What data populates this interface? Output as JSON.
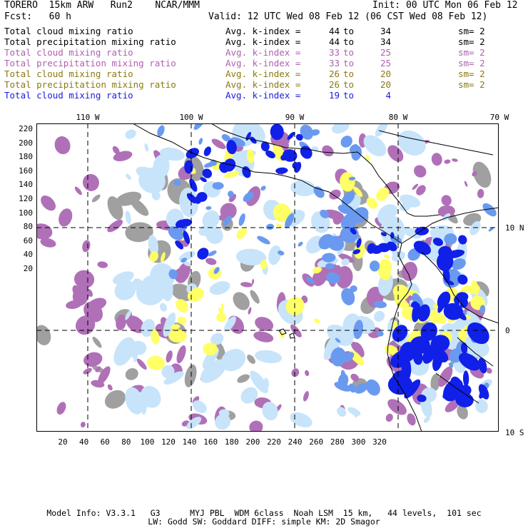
{
  "header": {
    "model": "TORERO  15km ARW   Run2    NCAR/MMM",
    "init": "Init: 00 UTC Mon 06 Feb 12",
    "fcst": "Fcst:   60 h",
    "valid": "Valid: 12 UTC Wed 08 Feb 12 (06 CST Wed 08 Feb 12)"
  },
  "legend": [
    {
      "variable": "Total cloud mixing ratio",
      "avg": "Avg. k-index =",
      "from": "44",
      "to": "to",
      "to_val": "34",
      "sm": "sm= 2",
      "color": "#000000"
    },
    {
      "variable": "Total precipitation mixing ratio",
      "avg": "Avg. k-index =",
      "from": "44",
      "to": "to",
      "to_val": "34",
      "sm": "sm= 2",
      "color": "#000000"
    },
    {
      "variable": "Total cloud mixing ratio",
      "avg": "Avg. k-index =",
      "from": "33",
      "to": "to",
      "to_val": "25",
      "sm": "sm= 2",
      "color": "#b060b0"
    },
    {
      "variable": "Total precipitation mixing ratio",
      "avg": "Avg. k-index =",
      "from": "33",
      "to": "to",
      "to_val": "25",
      "sm": "sm= 2",
      "color": "#b060b0"
    },
    {
      "variable": "Total cloud mixing ratio",
      "avg": "Avg. k-index =",
      "from": "26",
      "to": "to",
      "to_val": "20",
      "sm": "sm= 2",
      "color": "#8a7a10"
    },
    {
      "variable": "Total precipitation mixing ratio",
      "avg": "Avg. k-index =",
      "from": "26",
      "to": "to",
      "to_val": "20",
      "sm": "sm= 2",
      "color": "#8a7a10"
    },
    {
      "variable": "Total cloud mixing ratio",
      "avg": "Avg. k-index =",
      "from": "19",
      "to": "to",
      "to_val": "4",
      "sm": "",
      "color": "#1a1ae0"
    }
  ],
  "axes": {
    "top_ticks": [
      "110 W",
      "100 W",
      "90 W",
      "80 W",
      "70 W"
    ],
    "right_ticks": [
      "10 N",
      "0",
      "10 S"
    ],
    "left_ticks": [
      "220",
      "200",
      "180",
      "160",
      "140",
      "120",
      "100",
      "80",
      "60",
      "40",
      "20"
    ],
    "bottom_ticks": [
      "20",
      "40",
      "60",
      "80",
      "100",
      "120",
      "140",
      "160",
      "180",
      "200",
      "220",
      "240",
      "260",
      "280",
      "300",
      "320"
    ]
  },
  "map_colors": {
    "gray": "#a0a0a0",
    "purple": "#b070b8",
    "yellow": "#ffff66",
    "light_blue": "#c8e4fa",
    "mid_blue": "#6a9af0",
    "deep_blue": "#1020e8",
    "coastline": "#000000"
  },
  "footer": {
    "line1": "Model Info: V3.3.1   G3      MYJ PBL  WDM 6class  Noah LSM  15 km,   44 levels,  101 sec",
    "line2": "LW: Godd SW: Goddard DIFF: simple KM: 2D Smagor"
  }
}
